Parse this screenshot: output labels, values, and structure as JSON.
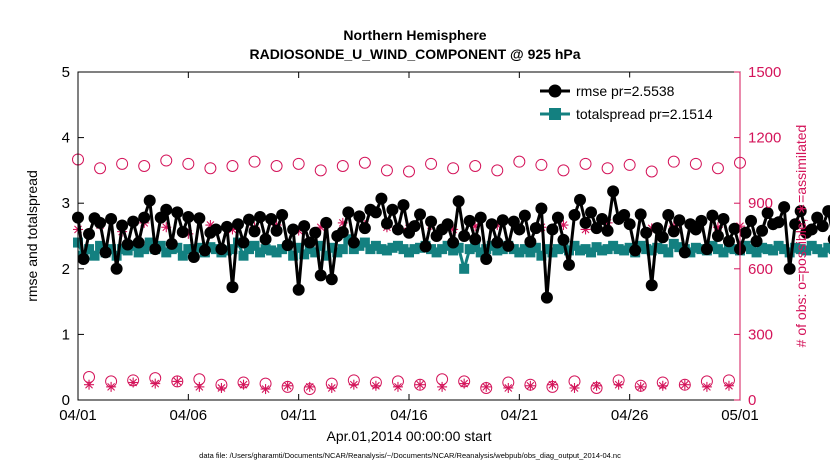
{
  "chart_data": {
    "type": "line",
    "title": "Northern Hemisphere",
    "subtitle": "RADIOSONDE_U_WIND_COMPONENT @ 925 hPa",
    "xlabel": "Apr.01,2014 00:00:00 start",
    "ylabel": "rmse and totalspread",
    "y2label": "# of obs: o=possible; ∗=assimilated",
    "xlim": [
      0,
      30
    ],
    "ylim": [
      0,
      5
    ],
    "y2lim": [
      0,
      1500
    ],
    "x_ticks": [
      0,
      5,
      10,
      15,
      20,
      25,
      30
    ],
    "x_tick_labels": [
      "04/01",
      "04/06",
      "04/11",
      "04/16",
      "04/21",
      "04/26",
      "05/01"
    ],
    "y_ticks": [
      0,
      1,
      2,
      3,
      4,
      5
    ],
    "y_tick_labels": [
      "0",
      "1",
      "2",
      "3",
      "4",
      "5"
    ],
    "y2_ticks": [
      0,
      300,
      600,
      900,
      1200,
      1500
    ],
    "y2_tick_labels": [
      "0",
      "300",
      "600",
      "900",
      "1200",
      "1500"
    ],
    "legend_position": "top-right",
    "colors": {
      "rmse": "#000000",
      "totalspread": "#138080",
      "obs": "#d4145a"
    },
    "series": [
      {
        "name": "rmse pr=2.5538",
        "axis": "left",
        "marker": "circle",
        "x_start": 0,
        "x_step": 0.25,
        "values": [
          2.78,
          2.15,
          2.53,
          2.77,
          2.7,
          2.25,
          2.76,
          2.0,
          2.66,
          2.37,
          2.72,
          2.4,
          2.78,
          3.04,
          2.3,
          2.78,
          2.9,
          2.38,
          2.86,
          2.56,
          2.79,
          2.18,
          2.77,
          2.28,
          2.55,
          2.6,
          2.3,
          2.64,
          1.72,
          2.68,
          2.4,
          2.75,
          2.57,
          2.79,
          2.45,
          2.76,
          2.58,
          2.82,
          2.36,
          2.6,
          1.68,
          2.65,
          2.4,
          2.55,
          1.9,
          2.7,
          1.84,
          2.5,
          2.56,
          2.86,
          2.4,
          2.8,
          2.62,
          2.9,
          2.86,
          3.07,
          2.69,
          2.9,
          2.6,
          2.97,
          2.55,
          2.65,
          2.83,
          2.34,
          2.72,
          2.5,
          2.6,
          2.68,
          2.4,
          3.03,
          2.5,
          2.73,
          2.45,
          2.78,
          2.15,
          2.68,
          2.4,
          2.74,
          2.35,
          2.72,
          2.6,
          2.81,
          2.41,
          2.62,
          2.92,
          1.56,
          2.6,
          2.78,
          2.44,
          2.06,
          2.82,
          3.05,
          2.7,
          2.86,
          2.62,
          2.76,
          2.58,
          3.18,
          2.76,
          2.82,
          2.68,
          2.28,
          2.83,
          2.55,
          1.75,
          2.62,
          2.48,
          2.82,
          2.57,
          2.74,
          2.25,
          2.68,
          2.6,
          2.73,
          2.3,
          2.81,
          2.5,
          2.76,
          2.42,
          2.61,
          2.3,
          2.55,
          2.73,
          2.42,
          2.58,
          2.85,
          2.68,
          2.71,
          2.94,
          2.0,
          2.68,
          2.88,
          2.55,
          2.6,
          2.78,
          2.65,
          2.88,
          2.45,
          2.95,
          2.65,
          2.5,
          2.82,
          2.65,
          2.73,
          2.78,
          2.6,
          2.64,
          2.7,
          2.71,
          2.7,
          2.68,
          2.72,
          2.68,
          2.66,
          2.76,
          2.67,
          2.68,
          2.7,
          2.68,
          2.64,
          2.7,
          2.66,
          2.7,
          2.68,
          2.72,
          2.71,
          2.68,
          2.78,
          2.6,
          2.61,
          2.65,
          2.7,
          2.6,
          2.66,
          2.88,
          2.51,
          2.56,
          2.58,
          2.32,
          2.6,
          2.58,
          2.92,
          2.59,
          2.7,
          2.71,
          2.75,
          2.58,
          2.6,
          2.65,
          3.02,
          2.35,
          2.65,
          2.58,
          2.7,
          2.42,
          2.67,
          2.35,
          2.55,
          2.48,
          2.7,
          2.45,
          2.77,
          2.38,
          2.86,
          2.62,
          2.48,
          2.66,
          2.5,
          2.69,
          2.6,
          2.34,
          2.6,
          2.32,
          2.58,
          2.65,
          2.55,
          2.7,
          2.66,
          2.43,
          2.68,
          2.6,
          2.38,
          2.66,
          2.35,
          2.76,
          2.49,
          2.72,
          2.64,
          2.5,
          2.68,
          2.28,
          2.72,
          2.55,
          2.62,
          2.36,
          2.57,
          2.66,
          2.61,
          2.48,
          2.7,
          2.62,
          2.8,
          2.3,
          2.72,
          2.66,
          2.78,
          2.52,
          2.83,
          2.58,
          2.77,
          2.68,
          2.72,
          2.39,
          2.8,
          2.59,
          2.6,
          2.7,
          2.81,
          2.63,
          2.78,
          2.58,
          2.85,
          2.66,
          2.78,
          2.62,
          2.75,
          2.8,
          2.9,
          2.7,
          2.92,
          2.67,
          3.0,
          2.75,
          2.95,
          3.18,
          2.7,
          2.72
        ]
      },
      {
        "name": "totalspread pr=2.1514",
        "axis": "left",
        "marker": "square",
        "x_start": 0,
        "x_step": 0.25,
        "values": [
          2.4,
          2.2,
          2.3,
          2.2,
          2.35,
          2.25,
          2.3,
          2.2,
          2.3,
          2.28,
          2.35,
          2.25,
          2.3,
          2.4,
          2.3,
          2.35,
          2.25,
          2.3,
          2.32,
          2.2,
          2.3,
          2.3,
          2.32,
          2.25,
          2.33,
          2.3,
          2.25,
          2.28,
          2.3,
          2.4,
          2.2,
          2.3,
          2.35,
          2.25,
          2.3,
          2.28,
          2.25,
          2.3,
          2.35,
          2.2,
          2.32,
          2.22,
          2.3,
          2.25,
          2.35,
          2.2,
          2.32,
          2.25,
          2.3,
          2.45,
          2.3,
          2.35,
          2.4,
          2.3,
          2.35,
          2.3,
          2.28,
          2.32,
          2.35,
          2.3,
          2.25,
          2.3,
          2.32,
          2.35,
          2.3,
          2.25,
          2.3,
          2.35,
          2.28,
          2.32,
          2.0,
          2.3,
          2.33,
          2.25,
          2.3,
          2.35,
          2.28,
          2.3,
          2.35,
          2.3,
          2.25,
          2.3,
          2.25,
          2.32,
          2.2,
          2.3,
          2.25,
          2.3,
          2.32,
          2.28,
          2.35,
          2.28,
          2.3,
          2.25,
          2.33,
          2.28,
          2.3,
          2.35,
          2.3,
          2.28,
          2.32,
          2.25,
          2.35,
          2.3,
          2.28,
          2.32,
          2.3,
          2.25,
          2.38,
          2.33,
          2.3,
          2.25,
          2.32,
          2.3,
          2.28,
          2.35,
          2.3,
          2.25,
          2.32,
          2.3,
          2.28,
          2.35,
          2.3,
          2.25,
          2.32,
          2.3,
          2.28,
          2.35,
          2.3,
          2.25,
          2.32,
          2.3,
          2.28,
          2.35,
          2.3,
          2.25,
          2.32,
          2.3,
          2.28,
          2.35,
          2.3,
          2.25,
          2.32,
          2.3,
          2.28,
          2.35,
          2.3,
          2.25,
          2.32,
          2.3,
          2.28,
          2.35,
          2.3,
          2.25,
          2.32,
          2.3,
          2.28,
          2.35,
          2.3,
          2.25,
          2.32,
          2.3,
          2.28,
          2.35,
          2.3,
          2.25,
          2.32,
          2.3,
          2.28,
          2.35,
          2.3,
          2.25,
          2.32,
          2.3,
          2.28,
          2.35,
          2.3,
          2.25,
          2.32,
          2.3,
          2.28,
          2.35,
          2.3,
          2.25,
          2.32,
          2.3,
          2.28,
          2.35,
          2.3,
          2.25,
          2.32,
          2.3,
          2.28,
          2.35,
          2.3,
          2.25,
          2.32,
          2.3,
          2.28,
          2.35,
          2.3,
          2.25,
          2.32,
          2.3,
          2.28,
          2.35,
          2.3,
          2.25,
          2.32,
          2.3,
          2.28,
          2.35,
          2.3,
          2.25,
          2.32,
          2.3,
          2.28,
          2.35,
          2.3,
          2.25,
          2.32,
          2.3,
          2.28,
          2.35,
          2.3,
          2.25,
          2.32,
          2.3,
          2.28,
          2.35,
          2.3,
          2.25,
          2.32,
          2.3,
          2.28,
          2.35,
          2.3,
          2.25,
          2.32,
          2.3,
          2.28,
          2.35,
          2.3,
          2.25,
          2.32,
          2.3,
          2.28,
          2.35,
          2.3,
          2.25,
          2.32,
          2.3,
          2.28,
          2.35,
          2.3,
          2.25,
          2.32,
          2.3,
          2.28,
          2.35,
          2.3,
          2.25,
          2.32,
          2.3,
          2.28,
          2.35,
          2.3,
          2.25,
          2.32,
          2.3,
          2.28,
          2.35,
          2.3,
          2.25,
          2.32,
          2.3,
          2.28,
          2.35,
          2.3,
          2.25,
          2.32,
          2.3,
          2.28,
          2.35,
          2.3,
          2.25,
          2.32,
          2.3,
          2.3
        ]
      },
      {
        "name": "obs possible",
        "axis": "right",
        "marker": "open-circle",
        "x_start": 0,
        "x_step": 0.5,
        "values": [
          1100,
          105,
          1060,
          85,
          1080,
          90,
          1070,
          100,
          1095,
          85,
          1080,
          95,
          1060,
          70,
          1070,
          80,
          1090,
          75,
          1070,
          60,
          1080,
          50,
          1050,
          75,
          1070,
          90,
          1085,
          80,
          1050,
          85,
          1045,
          70,
          1080,
          95,
          1060,
          85,
          1070,
          55,
          1050,
          80,
          1090,
          70,
          1075,
          60,
          1050,
          85,
          1080,
          55,
          1060,
          90,
          1075,
          65,
          1045,
          80,
          1090,
          70,
          1080,
          85,
          1060,
          90,
          1085
        ]
      },
      {
        "name": "obs assimilated",
        "axis": "right",
        "marker": "asterisk",
        "x_start": 0,
        "x_step": 0.5,
        "values": [
          780,
          70,
          800,
          60,
          770,
          80,
          810,
          75,
          790,
          85,
          760,
          60,
          800,
          55,
          780,
          70,
          790,
          50,
          800,
          65,
          775,
          60,
          790,
          55,
          810,
          70,
          800,
          65,
          790,
          60,
          785,
          70,
          800,
          60,
          780,
          75,
          795,
          60,
          800,
          55,
          780,
          65,
          790,
          70,
          800,
          55,
          780,
          65,
          810,
          70,
          800,
          60,
          785,
          65,
          795,
          70,
          780,
          60,
          790,
          65,
          795
        ]
      }
    ],
    "footnote": "data file: /Users/gharamti/Documents/NCAR/Reanalysis/~/Documents/NCAR/Reanalysis/webpub/obs_diag_output_2014-04.nc"
  }
}
